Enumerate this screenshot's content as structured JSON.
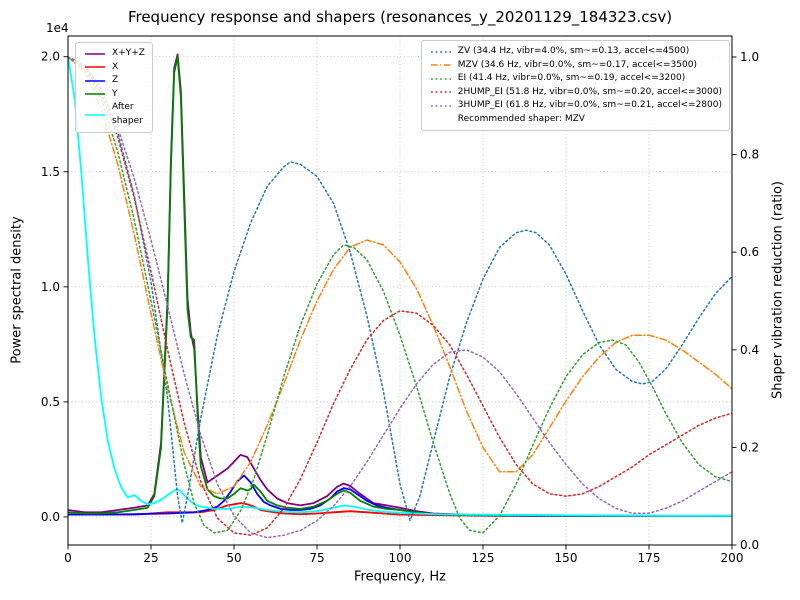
{
  "title": "Frequency response and shapers (resonances_y_20201129_184323.csv)",
  "axes": {
    "x": {
      "label": "Frequency, Hz",
      "min": 0,
      "max": 200,
      "ticks": [
        0,
        25,
        50,
        75,
        100,
        125,
        150,
        175,
        200
      ],
      "tick_labels": [
        "0",
        "25",
        "50",
        "75",
        "100",
        "125",
        "150",
        "175",
        "200"
      ]
    },
    "y_left": {
      "label": "Power spectral density",
      "offset_text": "1e4",
      "min": -0.122,
      "max": 2.09,
      "ticks": [
        0.0,
        0.5,
        1.0,
        1.5,
        2.0
      ],
      "tick_labels": [
        "0.0",
        "0.5",
        "1.0",
        "1.5",
        "2.0"
      ]
    },
    "y_right": {
      "label": "Shaper vibration reduction (ratio)",
      "min": 0,
      "max": 1.043,
      "ticks": [
        0.0,
        0.2,
        0.4,
        0.6,
        0.8,
        1.0
      ],
      "tick_labels": [
        "0.0",
        "0.2",
        "0.4",
        "0.6",
        "0.8",
        "1.0"
      ]
    }
  },
  "chart_data": {
    "type": "line",
    "title": "Frequency response and shapers (resonances_y_20201129_184323.csv)",
    "xlabel": "Frequency, Hz",
    "ylabel_left": "Power spectral density",
    "ylabel_right": "Shaper vibration reduction (ratio)",
    "left_axis_multiplier": "1e4",
    "x_range": [
      0,
      200
    ],
    "grid": true,
    "recommended": "Recommended shaper: MZV",
    "series": [
      {
        "name": "X+Y+Z",
        "label": "X+Y+Z",
        "legend": "left",
        "axis": "left",
        "color": "#800080",
        "style": "solid",
        "width": 1.8,
        "x": [
          0,
          5,
          10,
          15,
          20,
          24,
          26,
          28,
          30,
          31,
          32,
          33,
          34,
          35,
          36,
          37,
          38,
          39,
          40,
          42,
          44,
          46,
          48,
          50,
          52,
          54,
          56,
          58,
          60,
          63,
          66,
          70,
          74,
          78,
          81,
          83,
          85,
          88,
          92,
          96,
          100,
          105,
          110,
          120,
          140,
          160,
          180,
          200
        ],
        "y": [
          0.03,
          0.02,
          0.02,
          0.03,
          0.04,
          0.05,
          0.1,
          0.32,
          0.95,
          1.55,
          1.95,
          2.01,
          1.85,
          1.4,
          0.95,
          0.8,
          0.73,
          0.48,
          0.26,
          0.15,
          0.17,
          0.19,
          0.21,
          0.24,
          0.27,
          0.26,
          0.21,
          0.16,
          0.12,
          0.08,
          0.06,
          0.05,
          0.06,
          0.09,
          0.13,
          0.145,
          0.135,
          0.1,
          0.06,
          0.05,
          0.04,
          0.025,
          0.015,
          0.01,
          0.008,
          0.006,
          0.005,
          0.005
        ]
      },
      {
        "name": "X",
        "label": "X",
        "legend": "left",
        "axis": "left",
        "color": "#ff0000",
        "style": "solid",
        "width": 1.8,
        "x": [
          0,
          10,
          20,
          30,
          35,
          40,
          44,
          46,
          48,
          50,
          52,
          54,
          56,
          58,
          60,
          65,
          70,
          75,
          80,
          85,
          90,
          95,
          100,
          110,
          130,
          160,
          200
        ],
        "y": [
          0.01,
          0.01,
          0.01,
          0.02,
          0.02,
          0.02,
          0.03,
          0.04,
          0.05,
          0.055,
          0.06,
          0.055,
          0.045,
          0.03,
          0.025,
          0.015,
          0.012,
          0.015,
          0.02,
          0.025,
          0.02,
          0.015,
          0.01,
          0.008,
          0.005,
          0.004,
          0.004
        ]
      },
      {
        "name": "Z",
        "label": "Z",
        "legend": "left",
        "axis": "left",
        "color": "#0000ff",
        "style": "solid",
        "width": 1.8,
        "x": [
          0,
          10,
          20,
          30,
          38,
          42,
          45,
          47,
          49,
          51,
          53,
          55,
          57,
          59,
          61,
          64,
          67,
          70,
          73,
          76,
          79,
          81,
          83,
          85,
          87,
          90,
          93,
          96,
          100,
          105,
          110,
          120,
          140,
          170,
          200
        ],
        "y": [
          0.01,
          0.01,
          0.012,
          0.015,
          0.02,
          0.03,
          0.045,
          0.07,
          0.11,
          0.155,
          0.18,
          0.15,
          0.1,
          0.065,
          0.05,
          0.035,
          0.03,
          0.03,
          0.035,
          0.05,
          0.08,
          0.11,
          0.125,
          0.12,
          0.1,
          0.07,
          0.05,
          0.04,
          0.03,
          0.02,
          0.012,
          0.008,
          0.005,
          0.004,
          0.004
        ]
      },
      {
        "name": "Y",
        "label": "Y",
        "legend": "left",
        "axis": "left",
        "color": "#008000",
        "style": "solid",
        "width": 1.8,
        "x": [
          0,
          5,
          10,
          15,
          20,
          24,
          26,
          28,
          30,
          31,
          32,
          33,
          34,
          35,
          36,
          37,
          38,
          39,
          40,
          42,
          44,
          46,
          48,
          50,
          52,
          54,
          55,
          56,
          58,
          60,
          63,
          66,
          70,
          74,
          78,
          81,
          83,
          85,
          88,
          92,
          96,
          100,
          105,
          110,
          120,
          140,
          160,
          180,
          200
        ],
        "y": [
          0.02,
          0.015,
          0.015,
          0.02,
          0.03,
          0.04,
          0.09,
          0.3,
          0.92,
          1.52,
          1.93,
          2.0,
          1.82,
          1.35,
          0.9,
          0.78,
          0.77,
          0.45,
          0.22,
          0.12,
          0.09,
          0.08,
          0.08,
          0.1,
          0.125,
          0.115,
          0.12,
          0.14,
          0.11,
          0.07,
          0.05,
          0.04,
          0.035,
          0.045,
          0.07,
          0.1,
          0.115,
          0.105,
          0.07,
          0.045,
          0.035,
          0.03,
          0.02,
          0.012,
          0.008,
          0.006,
          0.005,
          0.004,
          0.004
        ]
      },
      {
        "name": "After shaper",
        "label": "After\nshaper",
        "legend": "left",
        "axis": "left",
        "color": "#00ffff",
        "style": "solid",
        "width": 1.8,
        "x": [
          0,
          2,
          4,
          6,
          8,
          10,
          12,
          14,
          16,
          18,
          20,
          22,
          24,
          26,
          28,
          30,
          32,
          33,
          34,
          36,
          38,
          40,
          44,
          48,
          52,
          56,
          60,
          65,
          70,
          75,
          80,
          83,
          86,
          90,
          95,
          100,
          110,
          120,
          140,
          160,
          180,
          200
        ],
        "y": [
          2.0,
          1.82,
          1.5,
          1.12,
          0.78,
          0.52,
          0.33,
          0.21,
          0.13,
          0.085,
          0.095,
          0.07,
          0.055,
          0.06,
          0.075,
          0.095,
          0.115,
          0.12,
          0.11,
          0.08,
          0.055,
          0.045,
          0.035,
          0.035,
          0.045,
          0.04,
          0.03,
          0.022,
          0.02,
          0.025,
          0.04,
          0.05,
          0.045,
          0.032,
          0.022,
          0.018,
          0.012,
          0.01,
          0.008,
          0.006,
          0.005,
          0.005
        ]
      },
      {
        "name": "ZV",
        "label": "ZV (34.4 Hz, vibr=4.0%, sm~=0.13, accel<=4500)",
        "legend": "right",
        "axis": "right",
        "color": "#1f77b4",
        "style": "dotted",
        "width": 1.5,
        "x": [
          0,
          5,
          10,
          15,
          20,
          25,
          30,
          33,
          34.4,
          36,
          40,
          45,
          50,
          55,
          60,
          65,
          67,
          70,
          75,
          80,
          85,
          90,
          95,
          100,
          103,
          106,
          110,
          115,
          120,
          125,
          130,
          135,
          138,
          141,
          145,
          150,
          155,
          160,
          165,
          170,
          173,
          176,
          180,
          185,
          190,
          195,
          200
        ],
        "y": [
          1.0,
          0.985,
          0.935,
          0.845,
          0.715,
          0.54,
          0.3,
          0.1,
          0.045,
          0.1,
          0.26,
          0.43,
          0.56,
          0.66,
          0.735,
          0.775,
          0.785,
          0.78,
          0.755,
          0.7,
          0.6,
          0.47,
          0.315,
          0.125,
          0.05,
          0.1,
          0.21,
          0.345,
          0.455,
          0.545,
          0.61,
          0.64,
          0.645,
          0.64,
          0.615,
          0.555,
          0.48,
          0.41,
          0.36,
          0.335,
          0.33,
          0.335,
          0.36,
          0.41,
          0.465,
          0.515,
          0.55
        ]
      },
      {
        "name": "MZV",
        "label": "MZV (34.6 Hz, vibr=0.0%, sm~=0.17, accel<=3500)",
        "legend": "right",
        "axis": "right",
        "color": "#ff7f0e",
        "style": "dashdot",
        "width": 1.5,
        "x": [
          0,
          5,
          10,
          15,
          20,
          25,
          30,
          35,
          40,
          45,
          50,
          55,
          60,
          65,
          70,
          75,
          80,
          85,
          90,
          95,
          100,
          105,
          110,
          115,
          120,
          125,
          130,
          135,
          140,
          145,
          150,
          155,
          160,
          165,
          170,
          175,
          180,
          185,
          190,
          195,
          200
        ],
        "y": [
          1.0,
          0.97,
          0.895,
          0.78,
          0.635,
          0.475,
          0.32,
          0.19,
          0.12,
          0.105,
          0.12,
          0.17,
          0.245,
          0.33,
          0.42,
          0.5,
          0.565,
          0.61,
          0.625,
          0.615,
          0.58,
          0.525,
          0.45,
          0.365,
          0.275,
          0.2,
          0.15,
          0.15,
          0.185,
          0.24,
          0.295,
          0.345,
          0.385,
          0.415,
          0.43,
          0.43,
          0.42,
          0.4,
          0.375,
          0.35,
          0.32
        ]
      },
      {
        "name": "EI",
        "label": "EI (41.4 Hz, vibr=0.0%, sm~=0.19, accel<=3200)",
        "legend": "right",
        "axis": "right",
        "color": "#2ca02c",
        "style": "dotted",
        "width": 1.5,
        "x": [
          0,
          5,
          10,
          15,
          20,
          25,
          30,
          35,
          38,
          41,
          44,
          48,
          52,
          56,
          60,
          65,
          70,
          75,
          80,
          83,
          86,
          90,
          95,
          100,
          105,
          110,
          115,
          118,
          121,
          125,
          130,
          135,
          140,
          145,
          150,
          155,
          160,
          164,
          168,
          172,
          176,
          180,
          185,
          190,
          195,
          200
        ],
        "y": [
          1.0,
          0.975,
          0.915,
          0.805,
          0.665,
          0.5,
          0.33,
          0.165,
          0.085,
          0.04,
          0.025,
          0.03,
          0.07,
          0.135,
          0.225,
          0.345,
          0.45,
          0.535,
          0.595,
          0.615,
          0.61,
          0.585,
          0.52,
          0.43,
          0.325,
          0.21,
          0.105,
          0.055,
          0.03,
          0.025,
          0.06,
          0.125,
          0.205,
          0.28,
          0.345,
          0.39,
          0.415,
          0.42,
          0.41,
          0.375,
          0.325,
          0.27,
          0.21,
          0.165,
          0.14,
          0.13
        ]
      },
      {
        "name": "2HUMP_EI",
        "label": "2HUMP_EI (51.8 Hz, vibr=0.0%, sm~=0.20, accel<=3000)",
        "legend": "right",
        "axis": "right",
        "color": "#d62728",
        "style": "dotted",
        "width": 1.5,
        "x": [
          0,
          5,
          10,
          15,
          20,
          25,
          30,
          35,
          40,
          45,
          50,
          55,
          60,
          65,
          70,
          75,
          80,
          85,
          90,
          95,
          100,
          105,
          110,
          115,
          120,
          125,
          130,
          135,
          140,
          145,
          150,
          155,
          160,
          165,
          170,
          175,
          180,
          185,
          190,
          195,
          200
        ],
        "y": [
          1.0,
          0.98,
          0.925,
          0.835,
          0.71,
          0.56,
          0.4,
          0.25,
          0.13,
          0.055,
          0.025,
          0.02,
          0.035,
          0.075,
          0.135,
          0.21,
          0.29,
          0.36,
          0.42,
          0.46,
          0.48,
          0.475,
          0.45,
          0.41,
          0.35,
          0.285,
          0.22,
          0.165,
          0.125,
          0.105,
          0.1,
          0.105,
          0.12,
          0.14,
          0.16,
          0.185,
          0.205,
          0.225,
          0.245,
          0.26,
          0.27
        ]
      },
      {
        "name": "3HUMP_EI",
        "label": "3HUMP_EI (61.8 Hz, vibr=0.0%, sm~=0.21, accel<=2800)",
        "legend": "right",
        "axis": "right",
        "color": "#9467bd",
        "style": "dotted",
        "width": 1.5,
        "x": [
          0,
          5,
          10,
          15,
          20,
          25,
          30,
          35,
          40,
          45,
          50,
          55,
          60,
          65,
          70,
          75,
          80,
          85,
          90,
          95,
          100,
          105,
          110,
          115,
          120,
          125,
          130,
          135,
          140,
          145,
          150,
          155,
          160,
          165,
          170,
          175,
          180,
          185,
          190,
          195,
          200
        ],
        "y": [
          1.0,
          0.98,
          0.935,
          0.855,
          0.75,
          0.625,
          0.49,
          0.35,
          0.225,
          0.125,
          0.06,
          0.025,
          0.015,
          0.02,
          0.03,
          0.05,
          0.08,
          0.12,
          0.17,
          0.225,
          0.28,
          0.33,
          0.37,
          0.395,
          0.4,
          0.385,
          0.355,
          0.31,
          0.26,
          0.21,
          0.165,
          0.125,
          0.095,
          0.075,
          0.065,
          0.065,
          0.075,
          0.09,
          0.11,
          0.13,
          0.15
        ]
      }
    ]
  }
}
